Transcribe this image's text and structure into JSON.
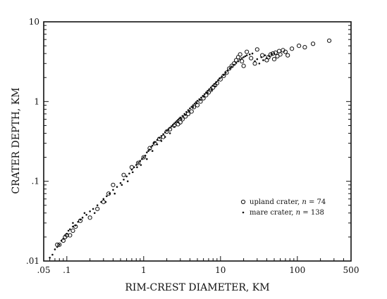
{
  "chart_data": {
    "type": "scatter",
    "title": "",
    "xlabel": "RIM-CREST DIAMETER, KM",
    "ylabel": "CRATER DEPTH, KM",
    "xscale": "log",
    "yscale": "log",
    "xlim": [
      0.05,
      500
    ],
    "ylim": [
      0.01,
      10
    ],
    "grid": false,
    "legend_position": "lower-right",
    "x_tick_labels": [
      {
        "value": 0.05,
        "label": ".05"
      },
      {
        "value": 0.1,
        "label": ".1"
      },
      {
        "value": 1,
        "label": "1"
      },
      {
        "value": 10,
        "label": "10"
      },
      {
        "value": 100,
        "label": "100"
      },
      {
        "value": 500,
        "label": "500"
      }
    ],
    "y_tick_labels": [
      {
        "value": 0.01,
        "label": ".01"
      },
      {
        "value": 0.1,
        "label": ".1"
      },
      {
        "value": 1,
        "label": "1"
      },
      {
        "value": 10,
        "label": "10"
      }
    ],
    "series": [
      {
        "name": "upland crater",
        "legend_label": "upland crater, n = 74",
        "marker": "open-circle",
        "points": [
          [
            0.075,
            0.016
          ],
          [
            0.08,
            0.016
          ],
          [
            0.09,
            0.018
          ],
          [
            0.095,
            0.02
          ],
          [
            0.1,
            0.021
          ],
          [
            0.11,
            0.021
          ],
          [
            0.12,
            0.024
          ],
          [
            0.13,
            0.027
          ],
          [
            0.15,
            0.032
          ],
          [
            0.2,
            0.035
          ],
          [
            0.25,
            0.045
          ],
          [
            0.3,
            0.055
          ],
          [
            0.35,
            0.07
          ],
          [
            0.4,
            0.09
          ],
          [
            0.55,
            0.12
          ],
          [
            0.7,
            0.15
          ],
          [
            0.85,
            0.17
          ],
          [
            1.0,
            0.2
          ],
          [
            1.2,
            0.26
          ],
          [
            1.4,
            0.3
          ],
          [
            1.6,
            0.34
          ],
          [
            1.8,
            0.36
          ],
          [
            2.0,
            0.42
          ],
          [
            2.2,
            0.45
          ],
          [
            2.5,
            0.5
          ],
          [
            2.8,
            0.52
          ],
          [
            3.0,
            0.55
          ],
          [
            3.2,
            0.6
          ],
          [
            3.5,
            0.65
          ],
          [
            3.8,
            0.7
          ],
          [
            4.2,
            0.75
          ],
          [
            4.5,
            0.85
          ],
          [
            5.0,
            0.9
          ],
          [
            5.5,
            1.0
          ],
          [
            6.0,
            1.1
          ],
          [
            6.5,
            1.2
          ],
          [
            7.0,
            1.3
          ],
          [
            7.5,
            1.4
          ],
          [
            8.0,
            1.5
          ],
          [
            8.5,
            1.6
          ],
          [
            9.0,
            1.7
          ],
          [
            10,
            1.9
          ],
          [
            11,
            2.1
          ],
          [
            12,
            2.3
          ],
          [
            13,
            2.6
          ],
          [
            14,
            2.8
          ],
          [
            15,
            3.0
          ],
          [
            16,
            3.3
          ],
          [
            17,
            3.6
          ],
          [
            18,
            3.9
          ],
          [
            19,
            3.2
          ],
          [
            20,
            2.8
          ],
          [
            22,
            4.2
          ],
          [
            25,
            3.5
          ],
          [
            28,
            3.0
          ],
          [
            30,
            4.5
          ],
          [
            35,
            3.8
          ],
          [
            40,
            3.3
          ],
          [
            42,
            3.6
          ],
          [
            45,
            3.9
          ],
          [
            48,
            4.0
          ],
          [
            50,
            3.4
          ],
          [
            52,
            4.1
          ],
          [
            55,
            3.7
          ],
          [
            58,
            4.3
          ],
          [
            60,
            3.9
          ],
          [
            65,
            4.4
          ],
          [
            70,
            4.2
          ],
          [
            75,
            3.8
          ],
          [
            85,
            4.6
          ],
          [
            105,
            5.0
          ],
          [
            125,
            4.8
          ],
          [
            160,
            5.3
          ],
          [
            260,
            5.8
          ]
        ]
      },
      {
        "name": "mare crater",
        "legend_label": "mare crater, n = 138",
        "marker": "dot",
        "points": [
          [
            0.06,
            0.011
          ],
          [
            0.065,
            0.012
          ],
          [
            0.07,
            0.014
          ],
          [
            0.075,
            0.015
          ],
          [
            0.08,
            0.016
          ],
          [
            0.085,
            0.018
          ],
          [
            0.09,
            0.019
          ],
          [
            0.095,
            0.021
          ],
          [
            0.1,
            0.022
          ],
          [
            0.105,
            0.024
          ],
          [
            0.11,
            0.025
          ],
          [
            0.12,
            0.027
          ],
          [
            0.13,
            0.028
          ],
          [
            0.14,
            0.031
          ],
          [
            0.15,
            0.033
          ],
          [
            0.16,
            0.035
          ],
          [
            0.18,
            0.038
          ],
          [
            0.2,
            0.042
          ],
          [
            0.22,
            0.045
          ],
          [
            0.25,
            0.05
          ],
          [
            0.28,
            0.055
          ],
          [
            0.3,
            0.06
          ],
          [
            0.33,
            0.065
          ],
          [
            0.36,
            0.07
          ],
          [
            0.4,
            0.078
          ],
          [
            0.45,
            0.085
          ],
          [
            0.5,
            0.095
          ],
          [
            0.55,
            0.105
          ],
          [
            0.6,
            0.115
          ],
          [
            0.65,
            0.125
          ],
          [
            0.7,
            0.14
          ],
          [
            0.75,
            0.15
          ],
          [
            0.8,
            0.16
          ],
          [
            0.85,
            0.17
          ],
          [
            0.9,
            0.18
          ],
          [
            0.95,
            0.19
          ],
          [
            1.0,
            0.2
          ],
          [
            1.05,
            0.21
          ],
          [
            1.1,
            0.23
          ],
          [
            1.15,
            0.24
          ],
          [
            1.2,
            0.25
          ],
          [
            1.25,
            0.27
          ],
          [
            1.3,
            0.28
          ],
          [
            1.35,
            0.3
          ],
          [
            1.4,
            0.31
          ],
          [
            1.5,
            0.33
          ],
          [
            1.6,
            0.35
          ],
          [
            1.7,
            0.37
          ],
          [
            1.8,
            0.39
          ],
          [
            1.9,
            0.41
          ],
          [
            2.0,
            0.43
          ],
          [
            2.1,
            0.45
          ],
          [
            2.2,
            0.47
          ],
          [
            2.3,
            0.49
          ],
          [
            2.4,
            0.51
          ],
          [
            2.5,
            0.53
          ],
          [
            2.6,
            0.55
          ],
          [
            2.7,
            0.57
          ],
          [
            2.8,
            0.59
          ],
          [
            2.9,
            0.61
          ],
          [
            3.0,
            0.63
          ],
          [
            3.2,
            0.66
          ],
          [
            3.4,
            0.7
          ],
          [
            3.6,
            0.74
          ],
          [
            3.8,
            0.78
          ],
          [
            4.0,
            0.82
          ],
          [
            4.2,
            0.86
          ],
          [
            4.4,
            0.9
          ],
          [
            4.6,
            0.94
          ],
          [
            4.8,
            0.98
          ],
          [
            5.0,
            1.02
          ],
          [
            5.3,
            1.07
          ],
          [
            5.6,
            1.12
          ],
          [
            5.9,
            1.18
          ],
          [
            6.2,
            1.24
          ],
          [
            6.5,
            1.3
          ],
          [
            6.8,
            1.36
          ],
          [
            7.1,
            1.42
          ],
          [
            7.5,
            1.5
          ],
          [
            7.9,
            1.58
          ],
          [
            8.3,
            1.66
          ],
          [
            8.8,
            1.75
          ],
          [
            9.3,
            1.85
          ],
          [
            9.8,
            1.95
          ],
          [
            10.4,
            2.05
          ],
          [
            11,
            2.15
          ],
          [
            11.7,
            2.3
          ],
          [
            12.4,
            2.45
          ],
          [
            13.2,
            2.6
          ],
          [
            14,
            2.75
          ],
          [
            15,
            2.9
          ],
          [
            16,
            3.05
          ],
          [
            17,
            3.2
          ],
          [
            18,
            3.35
          ],
          [
            19,
            3.5
          ],
          [
            20,
            3.6
          ],
          [
            21,
            3.7
          ],
          [
            22,
            3.8
          ],
          [
            24,
            3.9
          ],
          [
            26,
            4.0
          ],
          [
            28,
            3.2
          ],
          [
            30,
            3.4
          ],
          [
            32,
            3.0
          ],
          [
            34,
            3.6
          ],
          [
            36,
            3.3
          ],
          [
            38,
            3.8
          ],
          [
            40,
            3.5
          ],
          [
            43,
            3.7
          ],
          [
            46,
            3.9
          ],
          [
            50,
            4.0
          ],
          [
            0.12,
            0.03
          ],
          [
            0.17,
            0.04
          ],
          [
            0.23,
            0.04
          ],
          [
            0.32,
            0.055
          ],
          [
            0.42,
            0.07
          ],
          [
            0.52,
            0.09
          ],
          [
            0.62,
            0.1
          ],
          [
            0.72,
            0.13
          ],
          [
            0.82,
            0.15
          ],
          [
            0.92,
            0.16
          ],
          [
            1.1,
            0.19
          ],
          [
            1.3,
            0.24
          ],
          [
            1.5,
            0.29
          ],
          [
            1.7,
            0.32
          ],
          [
            1.9,
            0.36
          ],
          [
            2.2,
            0.4
          ],
          [
            2.5,
            0.48
          ],
          [
            2.8,
            0.55
          ],
          [
            3.1,
            0.6
          ],
          [
            3.5,
            0.68
          ],
          [
            3.9,
            0.76
          ],
          [
            4.4,
            0.85
          ],
          [
            4.9,
            0.95
          ],
          [
            5.5,
            1.05
          ],
          [
            6.1,
            1.15
          ],
          [
            6.8,
            1.28
          ],
          [
            7.6,
            1.4
          ],
          [
            8.5,
            1.55
          ]
        ]
      }
    ]
  }
}
